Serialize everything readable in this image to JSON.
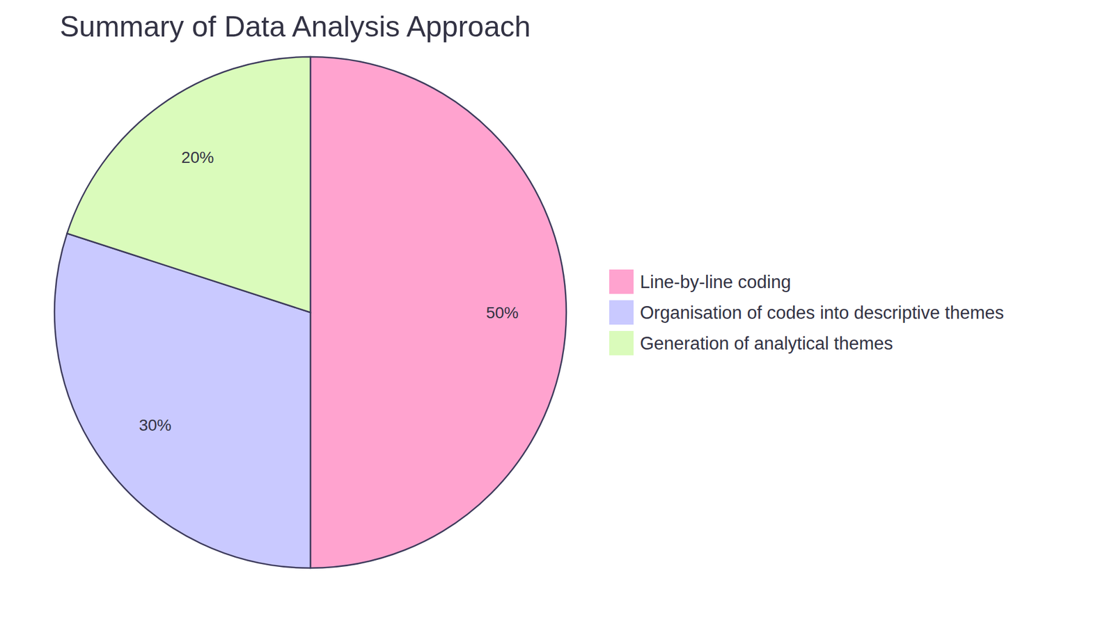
{
  "chart_data": {
    "type": "pie",
    "title": "Summary of Data Analysis Approach",
    "categories": [
      "Line-by-line coding",
      "Organisation of codes into descriptive themes",
      "Generation of analytical themes"
    ],
    "values": [
      50,
      30,
      20
    ],
    "value_labels": [
      "50%",
      "30%",
      "20%"
    ],
    "colors": [
      "#ffa3cf",
      "#c9c9ff",
      "#dafbbb"
    ],
    "data_labels": true,
    "legend": "right"
  }
}
